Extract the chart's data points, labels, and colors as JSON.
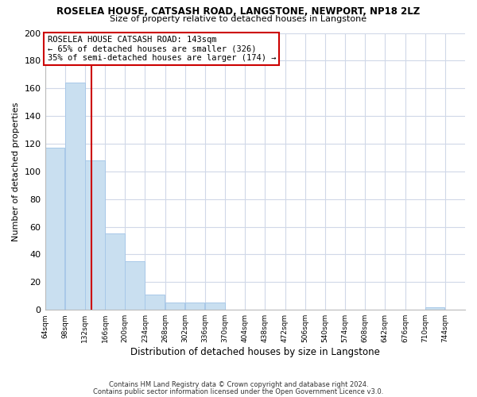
{
  "title": "ROSELEA HOUSE, CATSASH ROAD, LANGSTONE, NEWPORT, NP18 2LZ",
  "subtitle": "Size of property relative to detached houses in Langstone",
  "xlabel": "Distribution of detached houses by size in Langstone",
  "ylabel": "Number of detached properties",
  "bar_edges": [
    64,
    98,
    132,
    166,
    200,
    234,
    268,
    302,
    336,
    370,
    404,
    438,
    472,
    506,
    540,
    574,
    608,
    642,
    676,
    710,
    744
  ],
  "bar_heights": [
    117,
    164,
    108,
    55,
    35,
    11,
    5,
    5,
    5,
    0,
    0,
    0,
    0,
    0,
    0,
    0,
    0,
    0,
    0,
    2
  ],
  "bar_color": "#c9dff0",
  "bar_edge_color": "#a8c8e8",
  "property_line_x": 143,
  "property_line_color": "#cc0000",
  "annotation_title": "ROSELEA HOUSE CATSASH ROAD: 143sqm",
  "annotation_line1": "← 65% of detached houses are smaller (326)",
  "annotation_line2": "35% of semi-detached houses are larger (174) →",
  "annotation_box_color": "#ffffff",
  "annotation_box_edge": "#cc0000",
  "ylim": [
    0,
    200
  ],
  "yticks": [
    0,
    20,
    40,
    60,
    80,
    100,
    120,
    140,
    160,
    180,
    200
  ],
  "tick_labels": [
    "64sqm",
    "98sqm",
    "132sqm",
    "166sqm",
    "200sqm",
    "234sqm",
    "268sqm",
    "302sqm",
    "336sqm",
    "370sqm",
    "404sqm",
    "438sqm",
    "472sqm",
    "506sqm",
    "540sqm",
    "574sqm",
    "608sqm",
    "642sqm",
    "676sqm",
    "710sqm",
    "744sqm"
  ],
  "background_color": "#ffffff",
  "grid_color": "#d0d8e8",
  "footer_line1": "Contains HM Land Registry data © Crown copyright and database right 2024.",
  "footer_line2": "Contains public sector information licensed under the Open Government Licence v3.0."
}
